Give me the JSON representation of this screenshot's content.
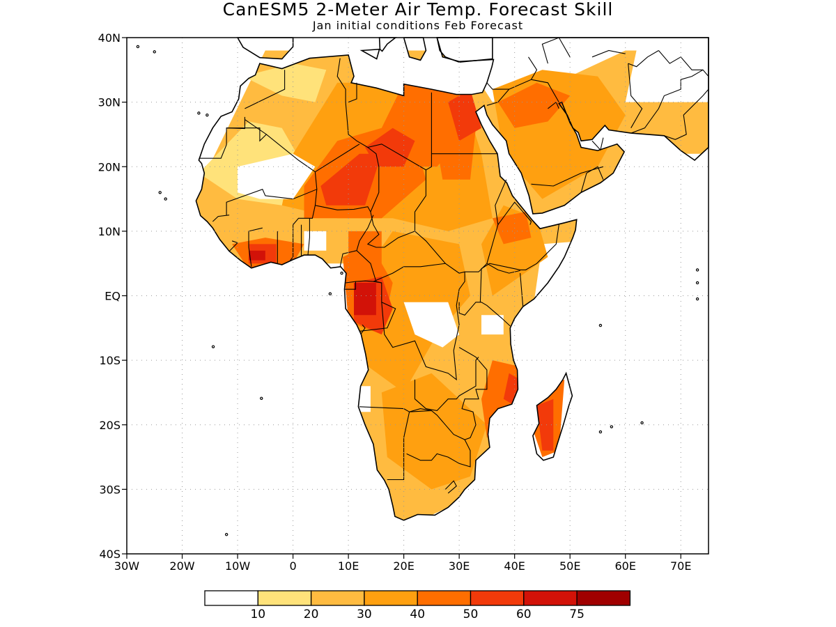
{
  "title": "CanESM5 2-Meter Air Temp. Forecast Skill",
  "subtitle": "Jan initial conditions  Feb Forecast",
  "map": {
    "lon_range": [
      -30,
      75
    ],
    "lat_range": [
      -40,
      40
    ],
    "lat_ticks": [
      {
        "value": 40,
        "label": "40N"
      },
      {
        "value": 30,
        "label": "30N"
      },
      {
        "value": 20,
        "label": "20N"
      },
      {
        "value": 10,
        "label": "10N"
      },
      {
        "value": 0,
        "label": "EQ"
      },
      {
        "value": -10,
        "label": "10S"
      },
      {
        "value": -20,
        "label": "20S"
      },
      {
        "value": -30,
        "label": "30S"
      },
      {
        "value": -40,
        "label": "40S"
      }
    ],
    "lon_ticks": [
      {
        "value": -30,
        "label": "30W"
      },
      {
        "value": -20,
        "label": "20W"
      },
      {
        "value": -10,
        "label": "10W"
      },
      {
        "value": 0,
        "label": "0"
      },
      {
        "value": 10,
        "label": "10E"
      },
      {
        "value": 20,
        "label": "20E"
      },
      {
        "value": 30,
        "label": "30E"
      },
      {
        "value": 40,
        "label": "40E"
      },
      {
        "value": 50,
        "label": "50E"
      },
      {
        "value": 60,
        "label": "60E"
      },
      {
        "value": 70,
        "label": "70E"
      }
    ],
    "grid": "dotted"
  },
  "colorbar": {
    "labels": [
      "10",
      "20",
      "30",
      "40",
      "50",
      "60",
      "75"
    ],
    "colors": [
      "#ffffff",
      "#ffe27a",
      "#ffbb40",
      "#ffa010",
      "#ff6e00",
      "#f23a0a",
      "#d21208",
      "#a00000"
    ]
  }
}
